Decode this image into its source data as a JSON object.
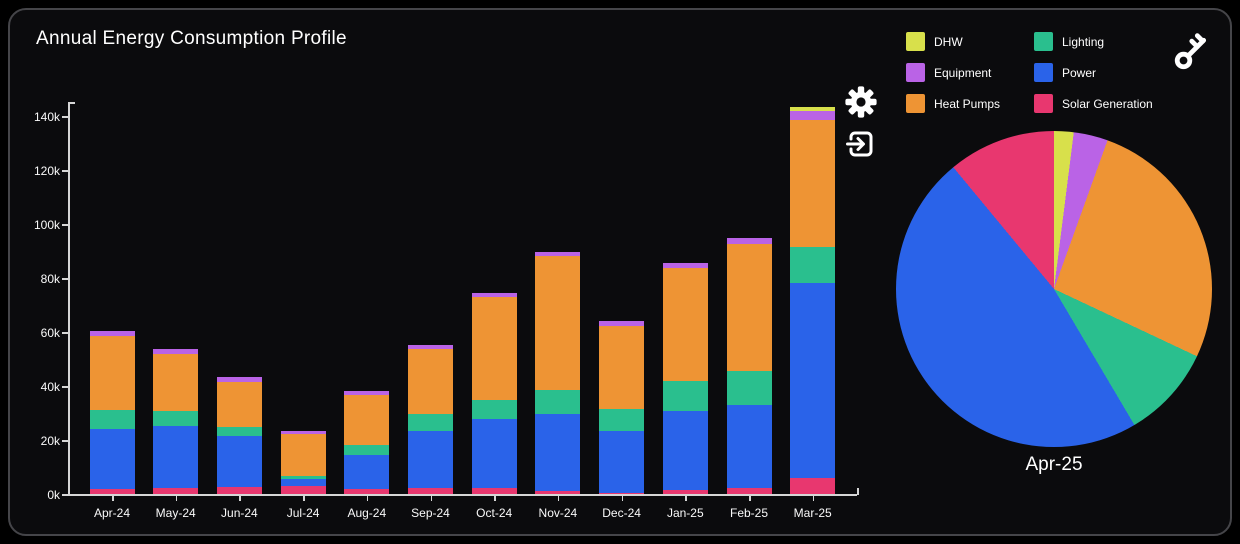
{
  "header": {
    "title": "Annual Energy Consumption Profile"
  },
  "theme": {
    "background": "#000000",
    "card_bg": "#0b0b0d",
    "card_border": "#454549",
    "axis_color": "#d6d6d6",
    "text_color": "#fafafa"
  },
  "toolbar": {
    "settings_icon": "gear-icon",
    "export_icon": "export-arrow-icon",
    "key_icon": "key-icon"
  },
  "legend": {
    "items": [
      {
        "label": "DHW",
        "color": "#d8e04b"
      },
      {
        "label": "Lighting",
        "color": "#2abf8e"
      },
      {
        "label": "Equipment",
        "color": "#ba63e6"
      },
      {
        "label": "Power",
        "color": "#2a63e9"
      },
      {
        "label": "Heat Pumps",
        "color": "#ee9434"
      },
      {
        "label": "Solar Generation",
        "color": "#e8376f"
      }
    ]
  },
  "pie_label": "Apr-25",
  "chart_data": [
    {
      "type": "bar",
      "stacked": true,
      "title": "Annual Energy Consumption Profile",
      "categories": [
        "Apr-24",
        "May-24",
        "Jun-24",
        "Jul-24",
        "Aug-24",
        "Sep-24",
        "Oct-24",
        "Nov-24",
        "Dec-24",
        "Jan-25",
        "Feb-25",
        "Mar-25"
      ],
      "values_in": "thousands",
      "series": [
        {
          "name": "Solar Generation",
          "color": "#e8376f",
          "values": [
            1.9,
            2.3,
            2.5,
            3.0,
            2.0,
            2.2,
            2.3,
            1.1,
            0.4,
            1.4,
            2.2,
            6.0
          ]
        },
        {
          "name": "Power",
          "color": "#2a63e9",
          "values": [
            22.2,
            23.0,
            18.9,
            2.5,
            12.3,
            21.0,
            25.4,
            28.6,
            22.8,
            29.3,
            30.7,
            72.0
          ]
        },
        {
          "name": "Lighting",
          "color": "#2abf8e",
          "values": [
            7.0,
            5.4,
            3.4,
            1.0,
            4.0,
            6.5,
            7.0,
            8.9,
            8.4,
            11.2,
            12.7,
            13.5
          ]
        },
        {
          "name": "Heat Pumps",
          "color": "#ee9434",
          "values": [
            27.4,
            21.3,
            16.8,
            15.7,
            18.3,
            24.1,
            38.3,
            49.4,
            30.6,
            41.7,
            47.0,
            46.9
          ]
        },
        {
          "name": "Equipment",
          "color": "#ba63e6",
          "values": [
            1.9,
            1.8,
            1.8,
            1.0,
            1.4,
            1.5,
            1.6,
            1.6,
            1.8,
            2.1,
            2.1,
            3.5
          ]
        },
        {
          "name": "DHW",
          "color": "#d8e04b",
          "values": [
            0,
            0,
            0,
            0,
            0,
            0,
            0,
            0,
            0,
            0,
            0,
            1.5
          ]
        }
      ],
      "ylim": [
        0,
        145
      ],
      "yticks": [
        {
          "value": 0,
          "label": "0k"
        },
        {
          "value": 20,
          "label": "20k"
        },
        {
          "value": 40,
          "label": "40k"
        },
        {
          "value": 60,
          "label": "60k"
        },
        {
          "value": 80,
          "label": "80k"
        },
        {
          "value": 100,
          "label": "100k"
        },
        {
          "value": 120,
          "label": "120k"
        },
        {
          "value": 140,
          "label": "140k"
        }
      ],
      "grid": false,
      "legend_position": "top-right"
    },
    {
      "type": "pie",
      "title": "Apr-25",
      "start_angle_deg": 0,
      "direction": "clockwise",
      "slices": [
        {
          "label": "DHW",
          "percent": 2.0,
          "color": "#d8e04b"
        },
        {
          "label": "Equipment",
          "percent": 3.5,
          "color": "#ba63e6"
        },
        {
          "label": "Heat Pumps",
          "percent": 26.5,
          "color": "#ee9434"
        },
        {
          "label": "Lighting",
          "percent": 9.5,
          "color": "#2abf8e"
        },
        {
          "label": "Power",
          "percent": 47.5,
          "color": "#2a63e9"
        },
        {
          "label": "Solar Generation",
          "percent": 11.0,
          "color": "#e8376f"
        }
      ]
    }
  ]
}
